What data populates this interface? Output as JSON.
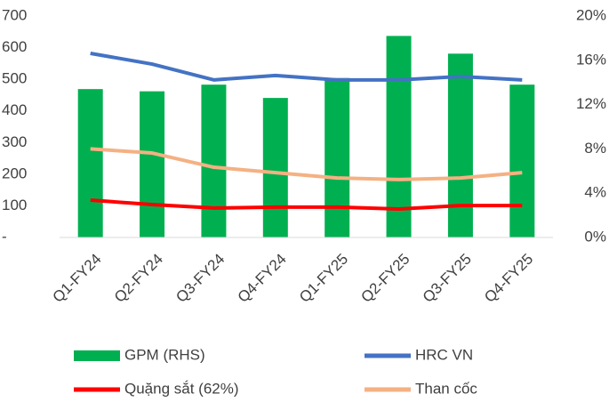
{
  "chart_data": {
    "type": "bar",
    "categories": [
      "Q1-FY24",
      "Q2-FY24",
      "Q3-FY24",
      "Q4-FY24",
      "Q1-FY25",
      "Q2-FY25",
      "Q3-FY25",
      "Q4-FY25"
    ],
    "series": [
      {
        "name": "GPM (RHS)",
        "type": "bar",
        "axis": "y2",
        "color": "#00b050",
        "values": [
          13.4,
          13.2,
          13.8,
          12.6,
          14.4,
          18.2,
          16.6,
          13.8
        ]
      },
      {
        "name": "HRC VN",
        "type": "line",
        "color": "#4472c4",
        "values": [
          582,
          548,
          498,
          512,
          498,
          498,
          509,
          498
        ]
      },
      {
        "name": "Quặng sắt (62%)",
        "type": "line",
        "color": "#ff0000",
        "values": [
          118,
          104,
          93,
          96,
          96,
          90,
          101,
          101
        ]
      },
      {
        "name": "Than cốc",
        "type": "line",
        "color": "#f4b183",
        "values": [
          280,
          267,
          222,
          205,
          188,
          183,
          188,
          205
        ]
      }
    ],
    "ylim": [
      0,
      700
    ],
    "yticks": [
      {
        "value": 0,
        "label": "-"
      },
      100,
      200,
      300,
      400,
      500,
      600,
      700
    ],
    "y2lim": [
      0,
      20
    ],
    "y2ticks": [
      {
        "value": 0,
        "label": "0%"
      },
      {
        "value": 4,
        "label": "4%"
      },
      {
        "value": 8,
        "label": "8%"
      },
      {
        "value": 12,
        "label": "12%"
      },
      {
        "value": 16,
        "label": "16%"
      },
      {
        "value": 20,
        "label": "20%"
      }
    ],
    "grid": false
  }
}
